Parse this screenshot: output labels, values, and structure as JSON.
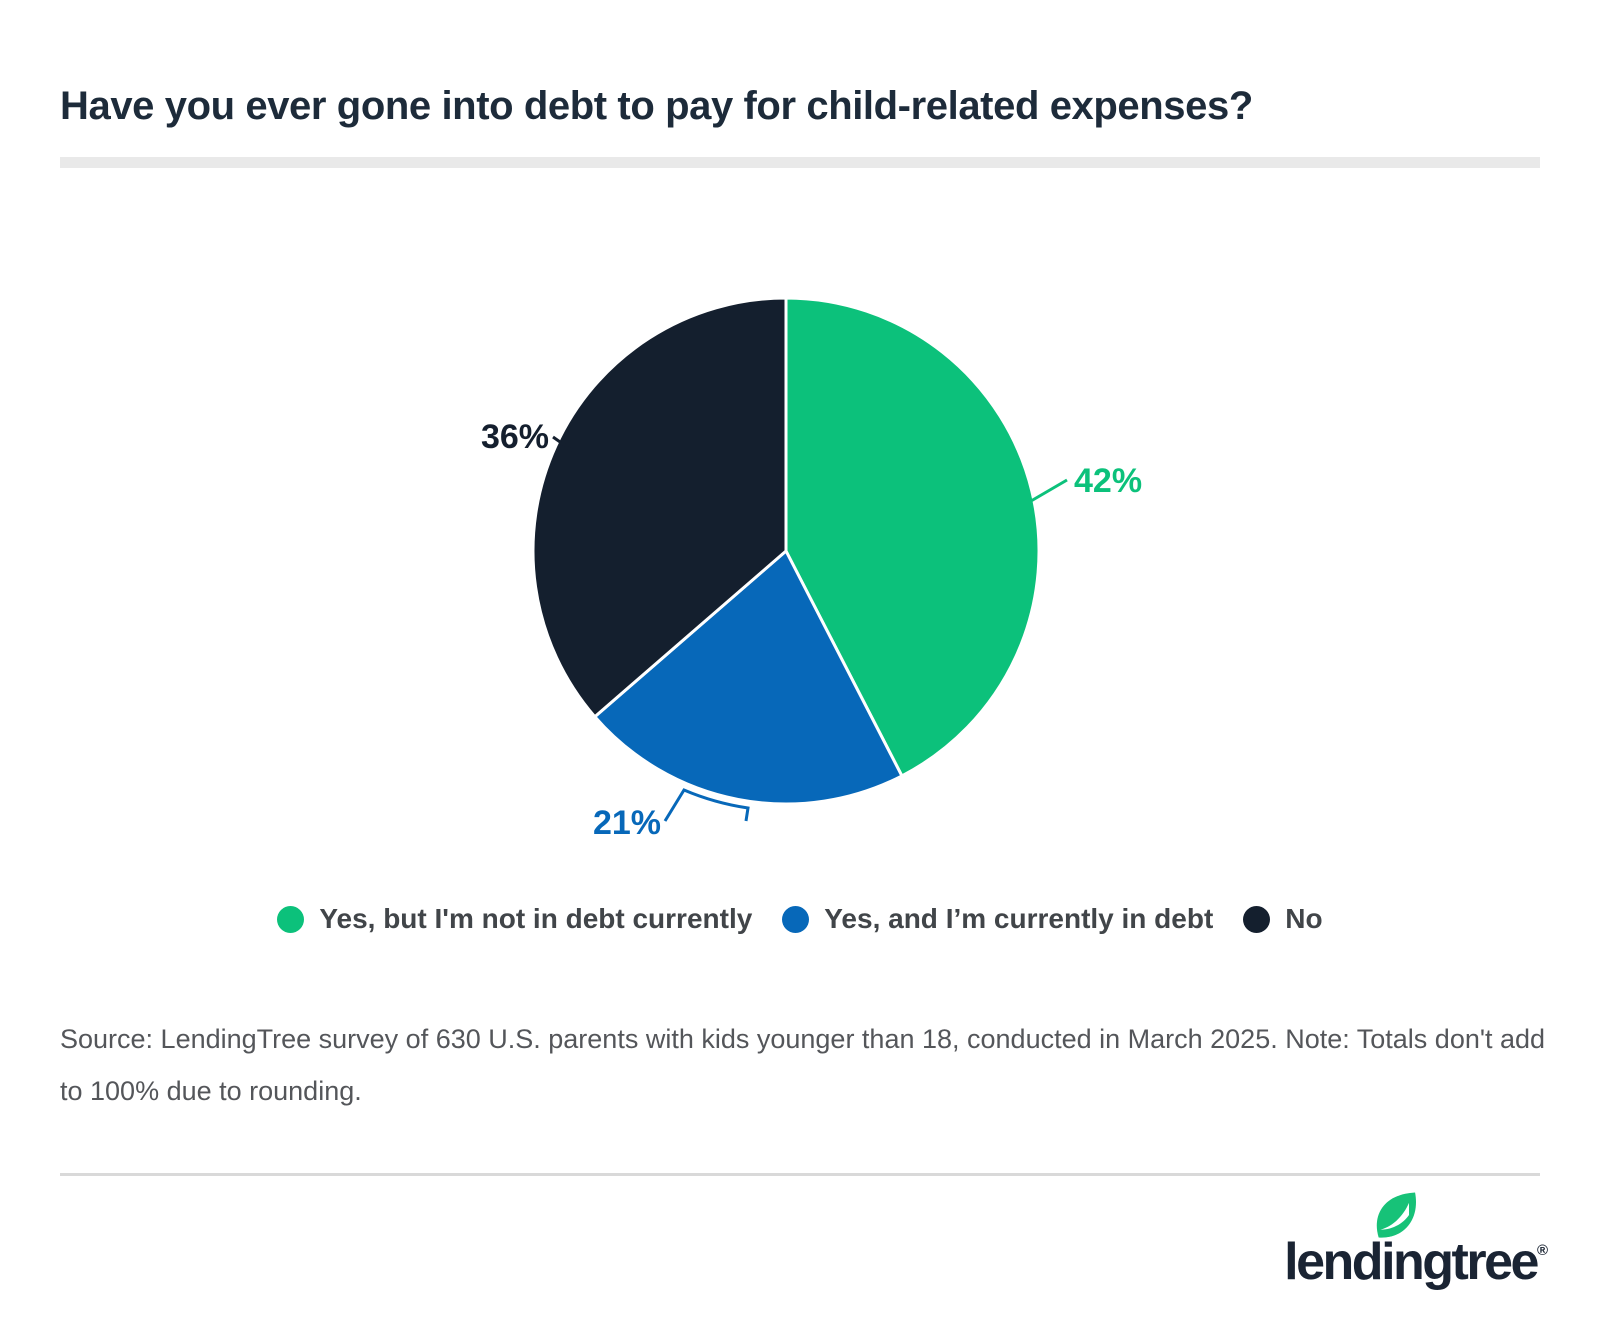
{
  "page": {
    "title": "Have you ever gone into debt to pay for child-related expenses?",
    "source_note": "Source: LendingTree survey of 630 U.S. parents with kids younger than 18, conducted in March 2025. Note: Totals don't add to 100% due to rounding.",
    "brand": {
      "logo_text": "lendingtree",
      "registered_mark": "®"
    }
  },
  "colors": {
    "green": "#0cc17b",
    "blue": "#0768b9",
    "navy": "#141f2e",
    "title_text": "#1d2b3a",
    "legend_text": "#414549",
    "source_text": "#54565a",
    "divider": "#e9e9e9",
    "rule": "#d9d9d9"
  },
  "chart_data": {
    "type": "pie",
    "title": "Have you ever gone into debt to pay for child-related expenses?",
    "start_angle_deg": 0,
    "direction": "clockwise",
    "legend_position": "bottom",
    "note": "Totals don't add to 100% due to rounding.",
    "slices": [
      {
        "label": "Yes, but I'm not in debt currently",
        "value": 42,
        "display": "42%",
        "color": "#0cc17b"
      },
      {
        "label": "Yes, and I’m currently in debt",
        "value": 21,
        "display": "21%",
        "color": "#0768b9"
      },
      {
        "label": "No",
        "value": 36,
        "display": "36%",
        "color": "#141f2e"
      }
    ]
  },
  "legend": {
    "items": [
      {
        "label": "Yes, but I'm not in debt currently",
        "color": "#0cc17b"
      },
      {
        "label": "Yes, and I’m currently in debt",
        "color": "#0768b9"
      },
      {
        "label": "No",
        "color": "#141f2e"
      }
    ]
  }
}
